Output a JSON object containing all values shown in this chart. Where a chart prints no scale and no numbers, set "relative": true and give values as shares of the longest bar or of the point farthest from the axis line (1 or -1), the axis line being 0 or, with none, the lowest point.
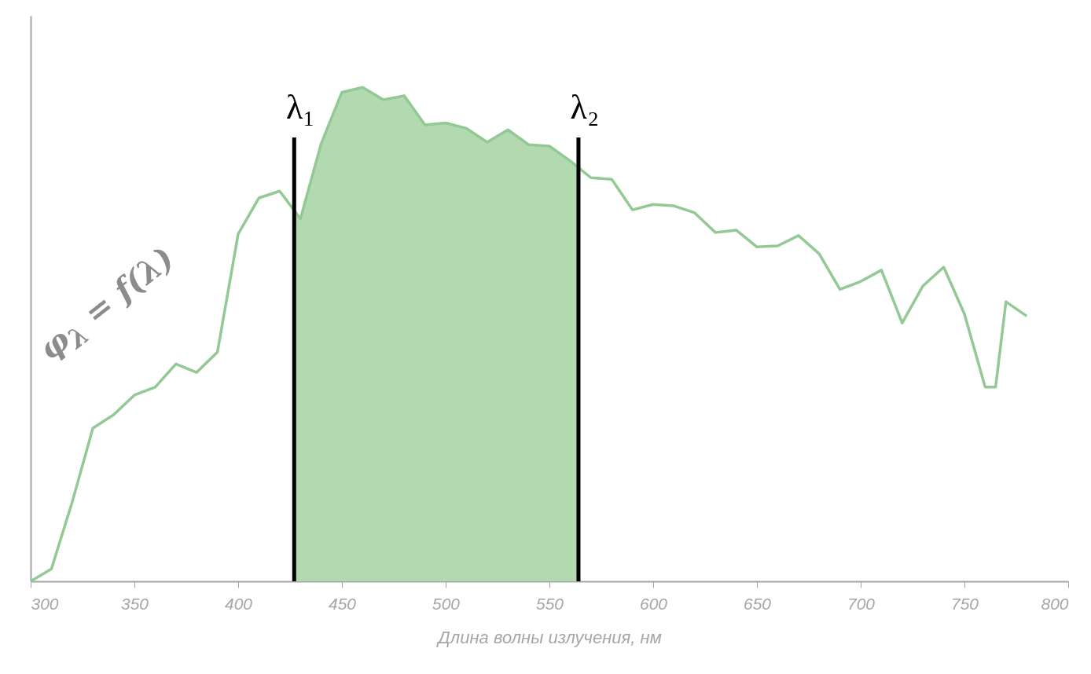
{
  "chart_data": {
    "type": "line",
    "xlabel": "Длина волны излучения, нм",
    "relative": true,
    "xlim": [
      300,
      800
    ],
    "xticks": [
      300,
      350,
      400,
      450,
      500,
      550,
      600,
      650,
      700,
      750,
      800
    ],
    "series": [
      {
        "type": "area",
        "color": "#b3d9b0",
        "x": [
          427,
          430,
          440,
          450,
          460,
          470,
          480,
          490,
          500,
          510,
          520,
          530,
          540,
          550,
          560,
          564
        ],
        "values": [
          0.751,
          0.734,
          0.886,
          0.99,
          1,
          0.975,
          0.983,
          0.924,
          0.928,
          0.917,
          0.889,
          0.914,
          0.884,
          0.881,
          0.851,
          0.837
        ]
      },
      {
        "type": "line",
        "color": "#93c994",
        "x": [
          300,
          310,
          320,
          330,
          340,
          350,
          360,
          370,
          380,
          390,
          400,
          410,
          420,
          430,
          440,
          450,
          460,
          470,
          480,
          490,
          500,
          510,
          520,
          530,
          540,
          550,
          560,
          570,
          580,
          590,
          600,
          610,
          620,
          630,
          640,
          650,
          660,
          670,
          680,
          690,
          700,
          710,
          720,
          730,
          740,
          750,
          760,
          765,
          770,
          780
        ],
        "values": [
          0,
          0.025,
          0.16,
          0.31,
          0.337,
          0.377,
          0.393,
          0.44,
          0.423,
          0.464,
          0.703,
          0.776,
          0.79,
          0.734,
          0.886,
          0.99,
          1,
          0.975,
          0.983,
          0.924,
          0.928,
          0.917,
          0.889,
          0.914,
          0.884,
          0.881,
          0.851,
          0.817,
          0.814,
          0.752,
          0.763,
          0.76,
          0.746,
          0.706,
          0.711,
          0.677,
          0.679,
          0.7,
          0.663,
          0.591,
          0.607,
          0.63,
          0.523,
          0.598,
          0.636,
          0.541,
          0.393,
          0.393,
          0.566,
          0.537
        ]
      }
    ],
    "ref_lines": [
      {
        "axis": "x",
        "value": 427,
        "label": "λ₁",
        "color": "#000000"
      },
      {
        "axis": "x",
        "value": 564,
        "label": "λ₂",
        "color": "#000000"
      }
    ],
    "annotations": [
      "φ$_{λ}$ = f(λ)"
    ],
    "grid": false,
    "marker": "none",
    "line_style": "solid"
  }
}
